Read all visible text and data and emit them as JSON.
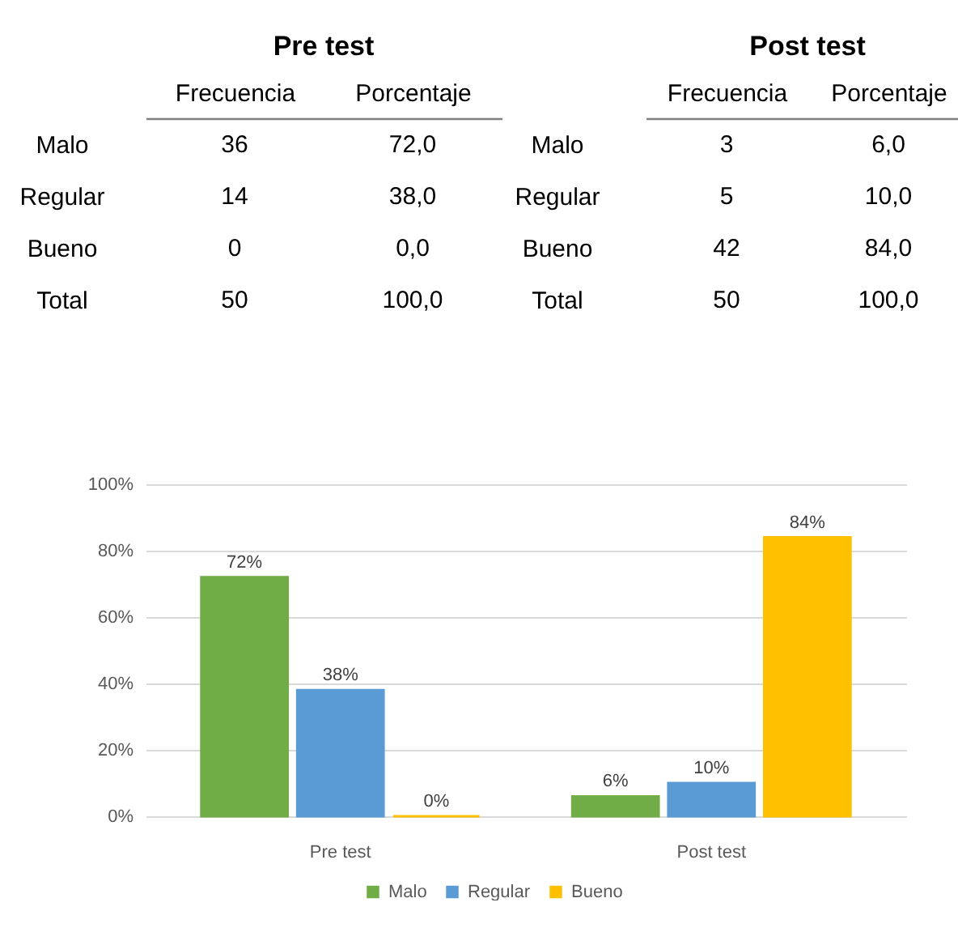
{
  "chart_data": [
    {
      "type": "heatmap",
      "title": "Pre test",
      "categories": [
        "Frecuencia",
        "Porcentaje"
      ],
      "y_categories": [
        "Malo",
        "Regular",
        "Bueno",
        "Total"
      ],
      "cells": [
        [
          36,
          72
        ],
        [
          14,
          38
        ],
        [
          0,
          0
        ],
        [
          50,
          100
        ]
      ],
      "cell_labels": [
        [
          "36",
          "72,0"
        ],
        [
          "14",
          "38,0"
        ],
        [
          "0",
          "0,0"
        ],
        [
          "50",
          "100,0"
        ]
      ]
    },
    {
      "type": "heatmap",
      "title": "Post test",
      "categories": [
        "Frecuencia",
        "Porcentaje"
      ],
      "y_categories": [
        "Malo",
        "Regular",
        "Bueno",
        "Total"
      ],
      "cells": [
        [
          3,
          6
        ],
        [
          5,
          10
        ],
        [
          42,
          84
        ],
        [
          50,
          100
        ]
      ],
      "cell_labels": [
        [
          "3",
          "6,0"
        ],
        [
          "5",
          "10,0"
        ],
        [
          "42",
          "84,0"
        ],
        [
          "50",
          "100,0"
        ]
      ]
    },
    {
      "type": "bar",
      "categories": [
        "Pre test",
        "Post test"
      ],
      "series": [
        {
          "name": "Malo",
          "color": "#70ad47",
          "values": [
            72,
            6
          ],
          "value_labels": [
            "72%",
            "6%"
          ]
        },
        {
          "name": "Regular",
          "color": "#5b9bd5",
          "values": [
            38,
            10
          ],
          "value_labels": [
            "38%",
            "10%"
          ]
        },
        {
          "name": "Bueno",
          "color": "#ffc000",
          "values": [
            0,
            84
          ],
          "value_labels": [
            "0%",
            "84%"
          ]
        }
      ],
      "ylim": [
        0,
        100
      ],
      "yticks": [
        {
          "value": 0,
          "label": "0%"
        },
        {
          "value": 20,
          "label": "20%"
        },
        {
          "value": 40,
          "label": "40%"
        },
        {
          "value": 60,
          "label": "60%"
        },
        {
          "value": 80,
          "label": "80%"
        },
        {
          "value": 100,
          "label": "100%"
        }
      ],
      "grid": "y",
      "legend": "bottom"
    }
  ]
}
